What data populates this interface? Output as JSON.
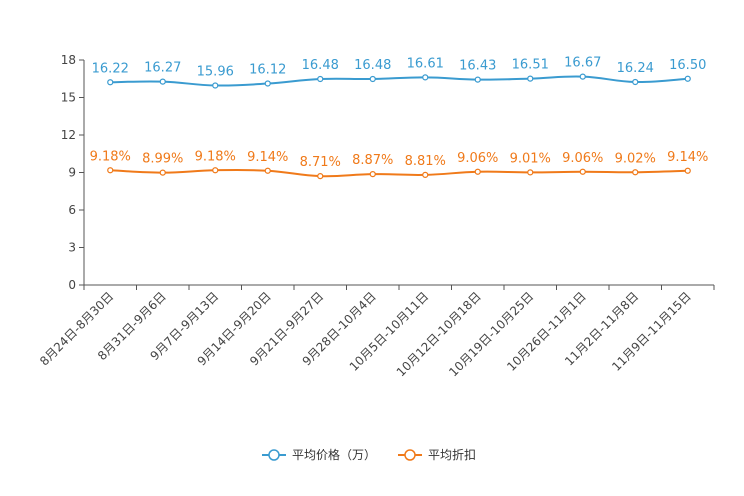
{
  "chart_data": {
    "type": "line",
    "categories": [
      "8月24日-8月30日",
      "8月31日-9月6日",
      "9月7日-9月13日",
      "9月14日-9月20日",
      "9月21日-9月27日",
      "9月28日-10月4日",
      "10月5日-10月11日",
      "10月12日-10月18日",
      "10月19日-10月25日",
      "10月26日-11月1日",
      "11月2日-11月8日",
      "11月9日-11月15日"
    ],
    "y_ticks": [
      "0",
      "3",
      "6",
      "9",
      "12",
      "15",
      "18"
    ],
    "ylim": [
      0,
      18
    ],
    "series": [
      {
        "name": "平均价格（万）",
        "color": "#3a9bd0",
        "values": [
          16.22,
          16.27,
          15.96,
          16.12,
          16.48,
          16.48,
          16.61,
          16.43,
          16.51,
          16.67,
          16.24,
          16.5
        ],
        "labels": [
          "16.22",
          "16.27",
          "15.96",
          "16.12",
          "16.48",
          "16.48",
          "16.61",
          "16.43",
          "16.51",
          "16.67",
          "16.24",
          "16.50"
        ]
      },
      {
        "name": "平均折扣",
        "color": "#f07a1a",
        "values": [
          9.18,
          8.99,
          9.18,
          9.14,
          8.71,
          8.87,
          8.81,
          9.06,
          9.01,
          9.06,
          9.02,
          9.14
        ],
        "labels": [
          "9.18%",
          "8.99%",
          "9.18%",
          "9.14%",
          "8.71%",
          "8.87%",
          "8.81%",
          "9.06%",
          "9.01%",
          "9.06%",
          "9.02%",
          "9.14%"
        ]
      }
    ]
  }
}
